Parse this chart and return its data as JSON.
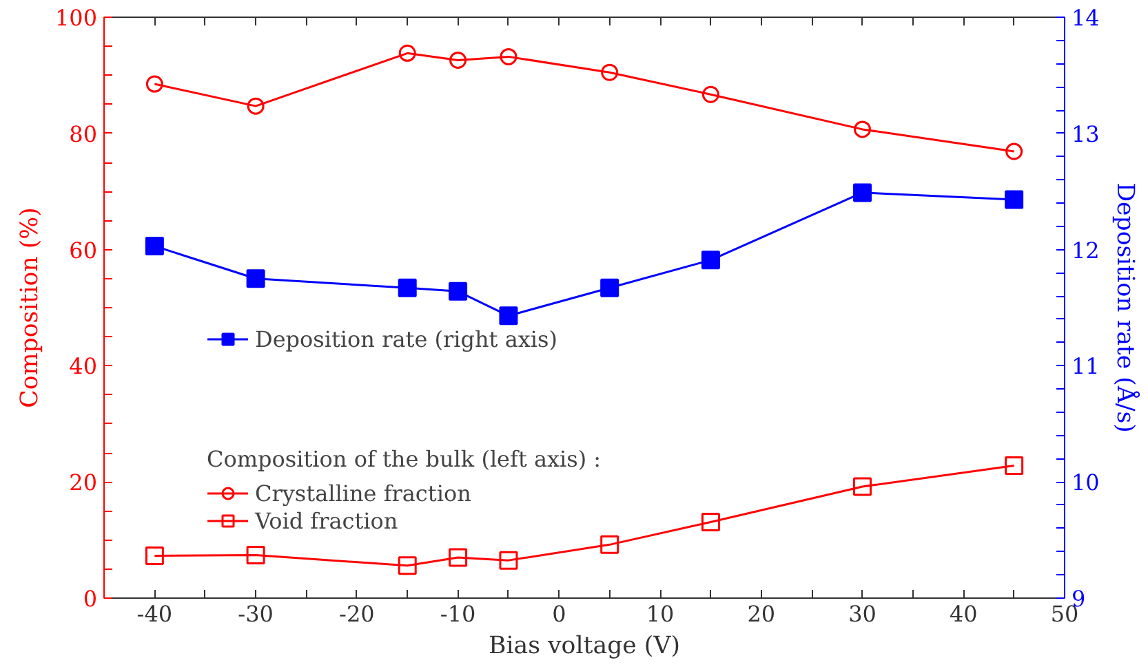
{
  "chart_data": {
    "type": "line",
    "xlabel": "Bias voltage (V)",
    "ylabel": "Composition (%)",
    "y2label": "Deposition rate (Å/s)",
    "legend_title": "Composition of the bulk (left axis) :",
    "x": [
      -40,
      -30,
      -15,
      -10,
      -5,
      5,
      15,
      30,
      45
    ],
    "series": [
      {
        "name": "Deposition rate (right axis)",
        "color": "#0000ff",
        "axis": "y2",
        "marker": "square",
        "values": [
          12.03,
          11.75,
          11.67,
          11.64,
          11.43,
          11.67,
          11.91,
          12.49,
          12.43
        ]
      },
      {
        "name": "Crystalline fraction",
        "color": "#ff0000",
        "marker": "circle",
        "values": [
          88.5,
          84.7,
          93.8,
          92.6,
          93.2,
          90.5,
          86.7,
          80.7,
          76.9
        ]
      },
      {
        "name": "Void fraction",
        "color": "#ff0000",
        "marker": "square",
        "values": [
          7.3,
          7.4,
          5.6,
          7.0,
          6.5,
          9.2,
          13.1,
          19.2,
          22.8
        ]
      }
    ],
    "xlim": [
      -45,
      50
    ],
    "xticks": [
      -40,
      {
        "value": -35,
        "label": null
      },
      -30,
      {
        "value": -25,
        "label": null
      },
      -20,
      {
        "value": -15,
        "label": null
      },
      -10,
      {
        "value": -5,
        "label": null
      },
      0,
      {
        "value": 5,
        "label": null
      },
      10,
      {
        "value": 15,
        "label": null
      },
      20,
      {
        "value": 25,
        "label": null
      },
      30,
      {
        "value": 35,
        "label": null
      },
      40,
      {
        "value": 45,
        "label": null
      },
      50
    ],
    "ylim": [
      0,
      100
    ],
    "yticks": [
      0,
      {
        "value": 5,
        "label": null
      },
      {
        "value": 10,
        "label": null
      },
      {
        "value": 15,
        "label": null
      },
      20,
      {
        "value": 25,
        "label": null
      },
      {
        "value": 30,
        "label": null
      },
      {
        "value": 35,
        "label": null
      },
      40,
      {
        "value": 45,
        "label": null
      },
      {
        "value": 50,
        "label": null
      },
      {
        "value": 55,
        "label": null
      },
      60,
      {
        "value": 65,
        "label": null
      },
      {
        "value": 70,
        "label": null
      },
      {
        "value": 75,
        "label": null
      },
      80,
      {
        "value": 85,
        "label": null
      },
      {
        "value": 90,
        "label": null
      },
      {
        "value": 95,
        "label": null
      },
      100
    ],
    "y2lim": [
      9,
      14
    ],
    "y2ticks": [
      9,
      {
        "value": 9.2,
        "label": null
      },
      {
        "value": 9.4,
        "label": null
      },
      {
        "value": 9.6,
        "label": null
      },
      {
        "value": 9.8,
        "label": null
      },
      10,
      {
        "value": 10.2,
        "label": null
      },
      {
        "value": 10.4,
        "label": null
      },
      {
        "value": 10.6,
        "label": null
      },
      {
        "value": 10.8,
        "label": null
      },
      11,
      {
        "value": 11.2,
        "label": null
      },
      {
        "value": 11.4,
        "label": null
      },
      {
        "value": 11.6,
        "label": null
      },
      {
        "value": 11.8,
        "label": null
      },
      12,
      {
        "value": 12.2,
        "label": null
      },
      {
        "value": 12.4,
        "label": null
      },
      {
        "value": 12.6,
        "label": null
      },
      {
        "value": 12.8,
        "label": null
      },
      13,
      {
        "value": 13.2,
        "label": null
      },
      {
        "value": 13.4,
        "label": null
      },
      {
        "value": 13.6,
        "label": null
      },
      {
        "value": 13.8,
        "label": null
      },
      14
    ],
    "grid": false,
    "legend": "left",
    "line_style": "solid"
  }
}
